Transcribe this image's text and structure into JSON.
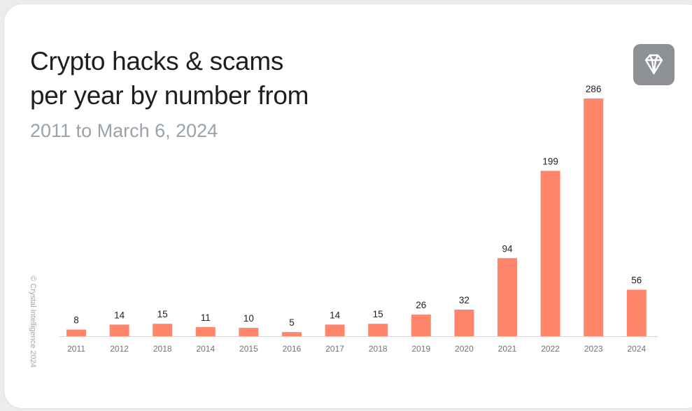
{
  "title_lines": [
    "Crypto hacks & scams",
    "per year by number from"
  ],
  "subtitle": "2011 to March 6, 2024",
  "copyright": "© Crystal Intelligence 2024",
  "logo_icon": "diamond-icon",
  "colors": {
    "bar": "#ff866b",
    "axis": "#d4d4d4",
    "logo_bg": "#8d9196"
  },
  "chart_data": {
    "type": "bar",
    "title": "Crypto hacks & scams per year by number from",
    "subtitle": "2011 to March 6, 2024",
    "categories": [
      "2011",
      "2012",
      "2018",
      "2014",
      "2015",
      "2016",
      "2017",
      "2018",
      "2019",
      "2020",
      "2021",
      "2022",
      "2023",
      "2024"
    ],
    "values": [
      8,
      14,
      15,
      11,
      10,
      5,
      14,
      15,
      26,
      32,
      94,
      199,
      286,
      56
    ],
    "ylim": [
      0,
      286
    ],
    "grid": false,
    "legend": "none",
    "xlabel": "",
    "ylabel": ""
  }
}
